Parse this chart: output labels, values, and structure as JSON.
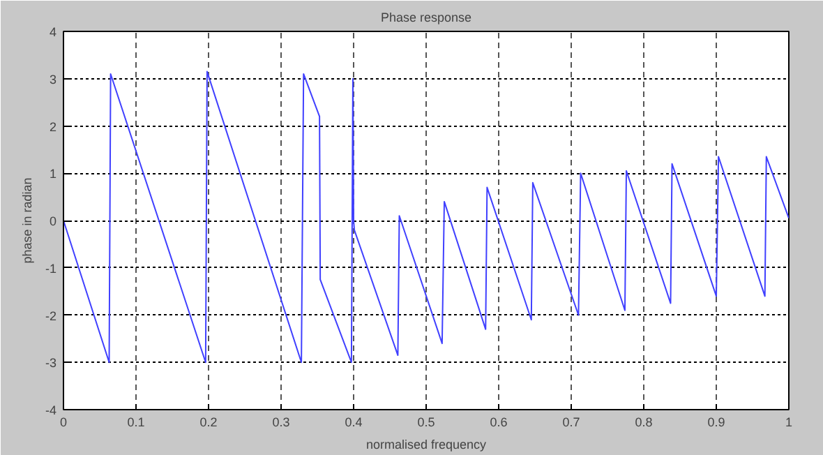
{
  "chart_data": {
    "type": "line",
    "title": "Phase response",
    "xlabel": "normalised frequency",
    "ylabel": "phase in radian",
    "xlim": [
      0,
      1
    ],
    "ylim": [
      -4,
      4
    ],
    "xticks": [
      0,
      0.1,
      0.2,
      0.3,
      0.4,
      0.5,
      0.6,
      0.7,
      0.8,
      0.9,
      1
    ],
    "yticks": [
      -4,
      -3,
      -2,
      -1,
      0,
      1,
      2,
      3,
      4
    ],
    "grid": true,
    "line_style": "solid",
    "marker": "none",
    "series": [
      {
        "color": "#4040ff",
        "x": [
          0,
          0.063,
          0.065,
          0.196,
          0.198,
          0.328,
          0.331,
          0.353,
          0.354,
          0.397,
          0.399,
          0.4,
          0.401,
          0.461,
          0.463,
          0.522,
          0.525,
          0.582,
          0.584,
          0.645,
          0.647,
          0.71,
          0.713,
          0.774,
          0.776,
          0.837,
          0.839,
          0.9,
          0.903,
          0.967,
          0.969,
          1.0
        ],
        "values": [
          0,
          -3,
          3.1,
          -3,
          3.15,
          -3,
          3.1,
          2.2,
          -1.25,
          -3,
          3,
          0,
          -0.2,
          -2.85,
          0.1,
          -2.6,
          0.4,
          -2.3,
          0.7,
          -2.1,
          0.8,
          -2.0,
          1.0,
          -1.9,
          1.05,
          -1.75,
          1.2,
          -1.6,
          1.35,
          -1.6,
          1.35,
          0.05
        ]
      }
    ]
  }
}
